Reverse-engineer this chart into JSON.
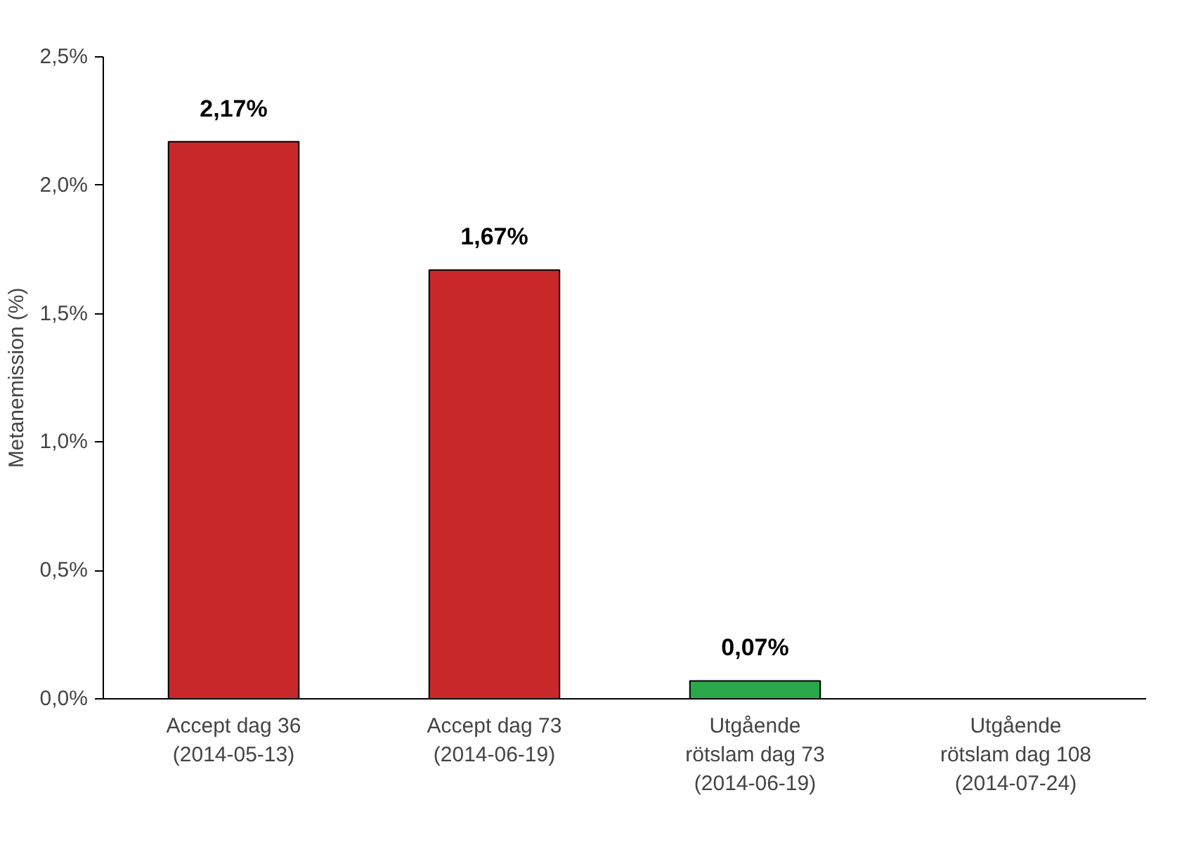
{
  "chart_data": {
    "type": "bar",
    "ylabel": "Metanemission (%)",
    "categories": [
      "Accept dag 36\n(2014-05-13)",
      "Accept dag 73\n(2014-06-19)",
      "Utgående\nrötslam dag 73\n(2014-06-19)",
      "Utgående\nrötslam dag 108\n(2014-07-24)"
    ],
    "values": [
      2.17,
      1.67,
      0.07,
      null
    ],
    "colors": [
      "#c8282a",
      "#c8282a",
      "#2aa84a",
      "#2aa84a"
    ],
    "value_labels": [
      "2,17%",
      "1,67%",
      "0,07%",
      null
    ],
    "ylim": [
      0,
      2.5
    ],
    "yticks": [
      {
        "value": 0,
        "label": "0,0%"
      },
      {
        "value": 0.5,
        "label": "0,5%"
      },
      {
        "value": 1.0,
        "label": "1,0%"
      },
      {
        "value": 1.5,
        "label": "1,5%"
      },
      {
        "value": 2.0,
        "label": "2,0%"
      },
      {
        "value": 2.5,
        "label": "2,5%"
      }
    ],
    "grid": false
  }
}
